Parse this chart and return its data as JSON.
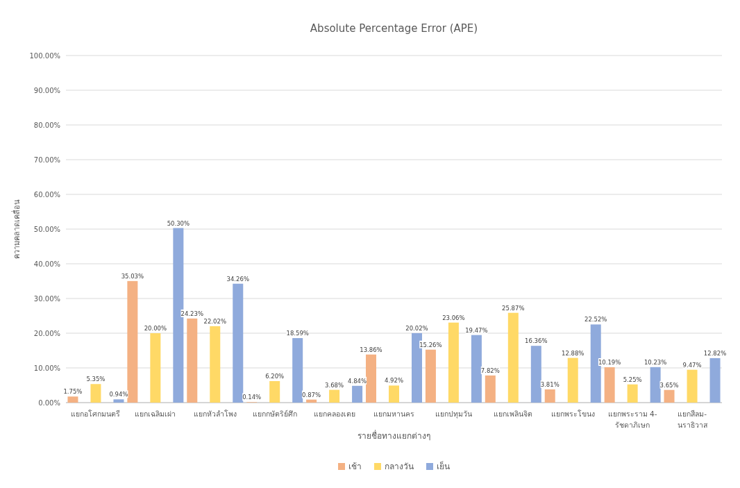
{
  "chart_data": {
    "type": "bar",
    "title": "Absolute Percentage Error (APE)",
    "xlabel": "รายชื่อทางแยกต่างๆ",
    "ylabel": "ความคลาดเคลื่อน",
    "categories": [
      "แยกอโศกมนตรี",
      "แยกเฉลิมเผ่า",
      "แยกหัวลำโพง",
      "แยกกษัตริย์ศึก",
      "แยกคลองเตย",
      "แยกมหานคร",
      "แยกปทุมวัน",
      "แยกเพลินจิต",
      "แยกพระโขนง",
      "แยกพระราม 4-รัชดาภิเษก",
      "แยกสีลม-นราธิวาส"
    ],
    "series": [
      {
        "name": "เช้า",
        "color": "#f4b183",
        "values": [
          1.75,
          35.03,
          24.23,
          0.14,
          0.87,
          13.86,
          15.26,
          7.82,
          3.81,
          10.19,
          3.65
        ],
        "value_labels": [
          "1.75%",
          "35.03%",
          "24.23%",
          "0.14%",
          "0.87%",
          "13.86%",
          "15.26%",
          "7.82%",
          "3.81%",
          "10.19%",
          "3.65%"
        ]
      },
      {
        "name": "กลางวัน",
        "color": "#ffd966",
        "values": [
          5.35,
          20.0,
          22.02,
          6.2,
          3.68,
          4.92,
          23.06,
          25.87,
          12.88,
          5.25,
          9.47
        ],
        "value_labels": [
          "5.35%",
          "20.00%",
          "22.02%",
          "6.20%",
          "3.68%",
          "4.92%",
          "23.06%",
          "25.87%",
          "12.88%",
          "5.25%",
          "9.47%"
        ]
      },
      {
        "name": "เย็น",
        "color": "#8faadc",
        "values": [
          0.94,
          50.3,
          34.26,
          18.59,
          4.84,
          20.02,
          19.47,
          16.36,
          22.52,
          10.23,
          12.82
        ],
        "value_labels": [
          "0.94%",
          "50.30%",
          "34.26%",
          "18.59%",
          "4.84%",
          "20.02%",
          "19.47%",
          "16.36%",
          "22.52%",
          "10.23%",
          "12.82%"
        ]
      }
    ],
    "ylim": [
      0,
      100
    ],
    "yticks": [
      {
        "value": 0,
        "label": "0.00%"
      },
      {
        "value": 10,
        "label": "10.00%"
      },
      {
        "value": 20,
        "label": "20.00%"
      },
      {
        "value": 30,
        "label": "30.00%"
      },
      {
        "value": 40,
        "label": "40.00%"
      },
      {
        "value": 50,
        "label": "50.00%"
      },
      {
        "value": 60,
        "label": "60.00%"
      },
      {
        "value": 70,
        "label": "70.00%"
      },
      {
        "value": 80,
        "label": "80.00%"
      },
      {
        "value": 90,
        "label": "90.00%"
      },
      {
        "value": 100,
        "label": "100.00%"
      }
    ],
    "grid": "y",
    "legend": "bottom"
  }
}
